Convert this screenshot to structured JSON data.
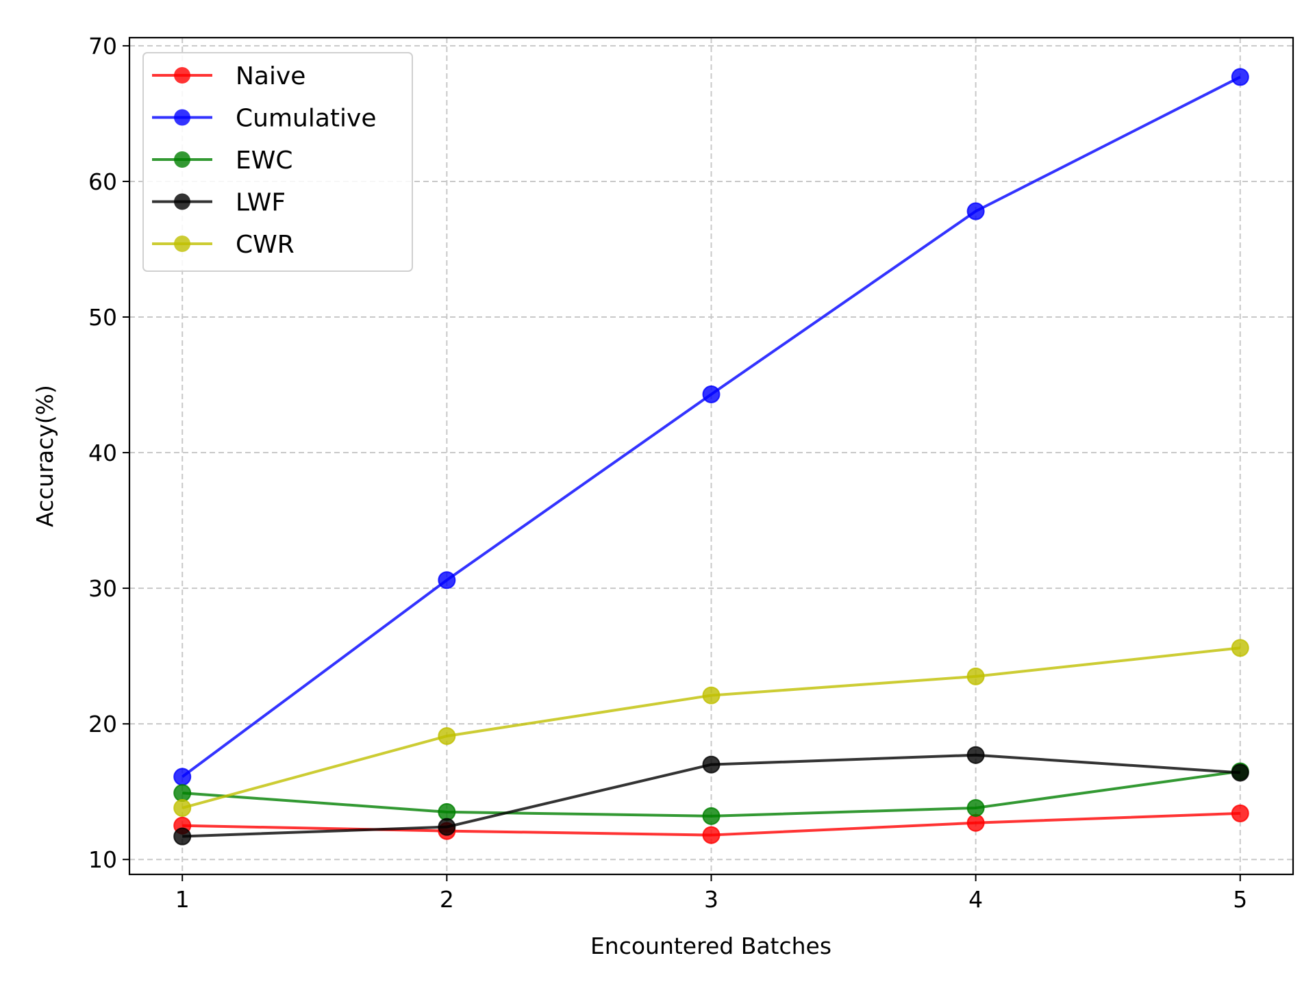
{
  "chart_data": {
    "type": "line",
    "title": "",
    "xlabel": "Encountered Batches",
    "ylabel": "Accuracy(%)",
    "x": [
      1,
      2,
      3,
      4,
      5
    ],
    "xticks": [
      "1",
      "2",
      "3",
      "4",
      "5"
    ],
    "xlim": [
      0.8,
      5.2
    ],
    "yticks": [
      "10",
      "20",
      "30",
      "40",
      "50",
      "60",
      "70"
    ],
    "ylim": [
      8.9,
      70.6
    ],
    "grid": true,
    "legend_position": "upper-left",
    "series": [
      {
        "name": "Naive",
        "color": "#ff0000",
        "values": [
          12.5,
          12.1,
          11.8,
          12.7,
          13.4
        ]
      },
      {
        "name": "Cumulative",
        "color": "#0000ff",
        "values": [
          16.1,
          30.6,
          44.3,
          57.8,
          67.7
        ]
      },
      {
        "name": "EWC",
        "color": "#008000",
        "values": [
          14.9,
          13.5,
          13.2,
          13.8,
          16.5
        ]
      },
      {
        "name": "LWF",
        "color": "#000000",
        "values": [
          11.7,
          12.4,
          17.0,
          17.7,
          16.4
        ]
      },
      {
        "name": "CWR",
        "color": "#bfbf00",
        "values": [
          13.8,
          19.1,
          22.1,
          23.5,
          25.6
        ]
      }
    ]
  }
}
